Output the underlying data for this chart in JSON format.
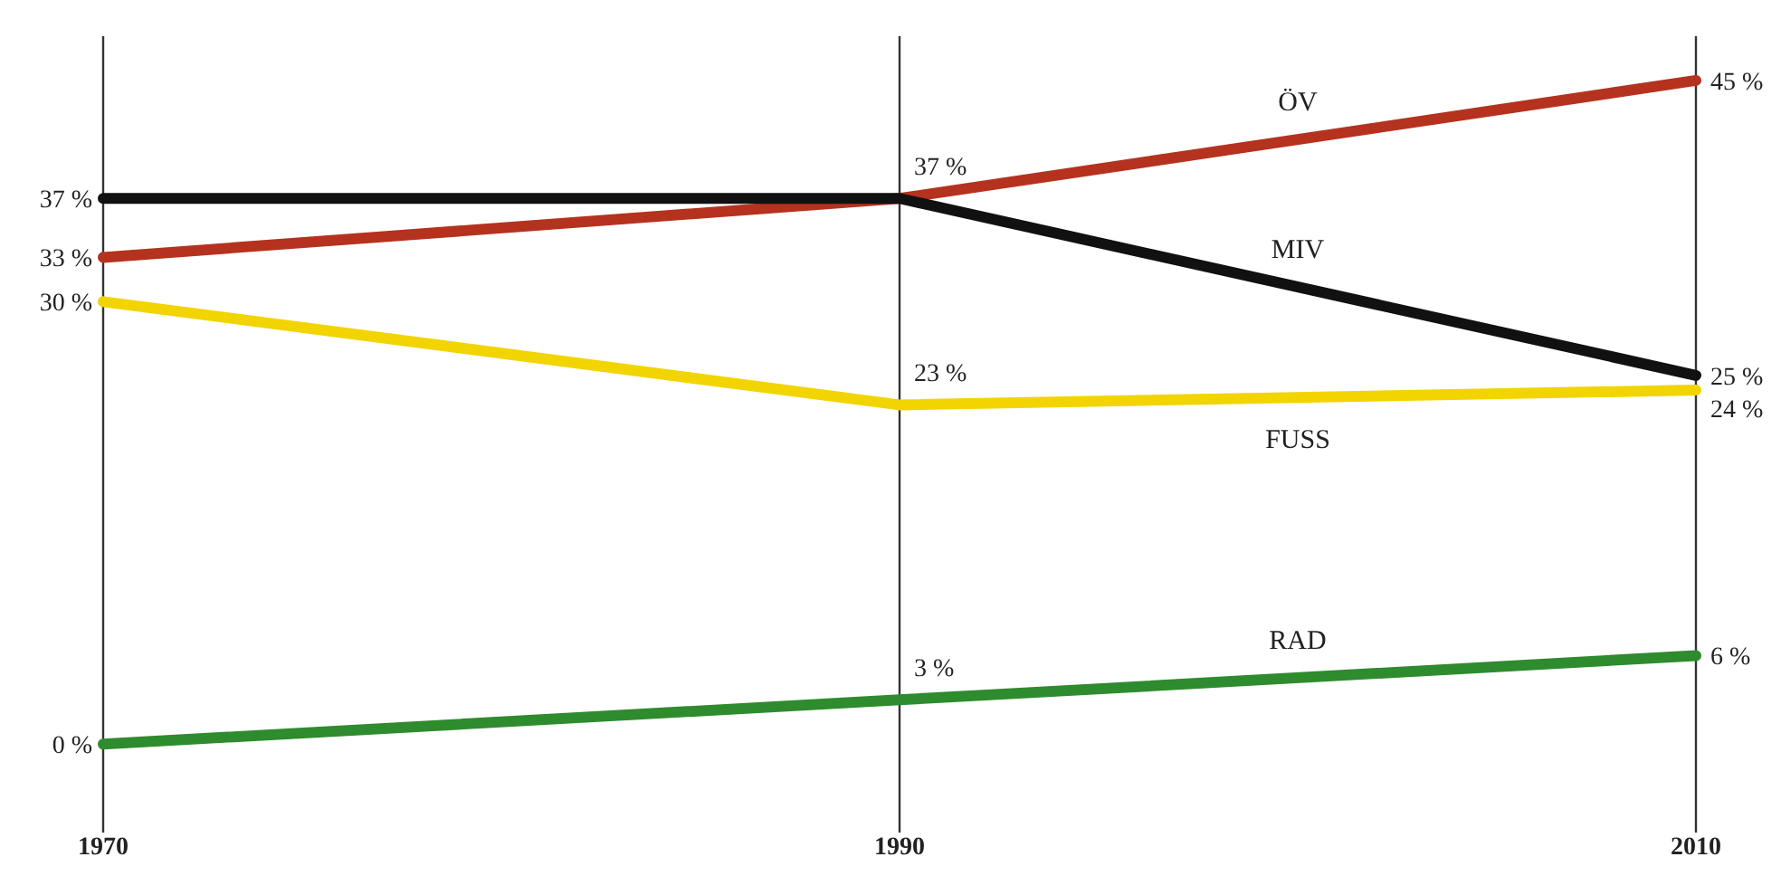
{
  "chart_data": {
    "type": "line",
    "categories": [
      "1970",
      "1990",
      "2010"
    ],
    "ylim": [
      -6,
      48
    ],
    "grid": "x",
    "tick_labels": "x",
    "series": [
      {
        "name": "ÖV",
        "color": "#b5321e",
        "values": [
          33,
          37,
          45
        ],
        "value_labels": [
          "33 %",
          null,
          "45 %"
        ]
      },
      {
        "name": "MIV",
        "color": "#111111",
        "values": [
          37,
          37,
          25
        ],
        "value_labels": [
          "37 %",
          "37 %",
          "25 %"
        ]
      },
      {
        "name": "FUSS",
        "color": "#f2d400",
        "values": [
          30,
          23,
          24
        ],
        "value_labels": [
          "30 %",
          "23 %",
          "24 %"
        ]
      },
      {
        "name": "RAD",
        "color": "#2e8b2e",
        "values": [
          0,
          3,
          6
        ],
        "value_labels": [
          "0 %",
          "3 %",
          "6 %"
        ]
      }
    ]
  }
}
